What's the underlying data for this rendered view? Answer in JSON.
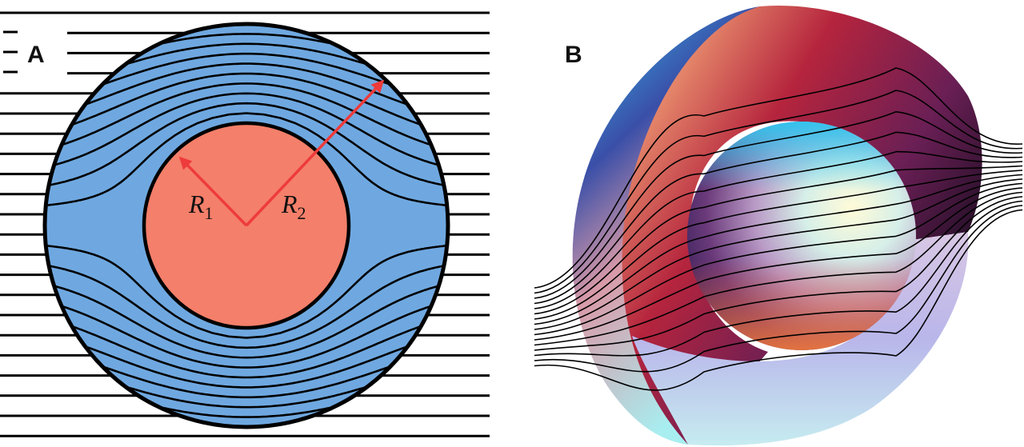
{
  "panels": {
    "a": {
      "label": "A",
      "inner_label": "R",
      "inner_sub": "1",
      "outer_label": "R",
      "outer_sub": "2"
    },
    "b": {
      "label": "B"
    }
  },
  "colors": {
    "shell_fill": "#6fa8e0",
    "core_fill": "#f47f6a",
    "arrow": "#ee3b3b",
    "lines": "#000000"
  }
}
